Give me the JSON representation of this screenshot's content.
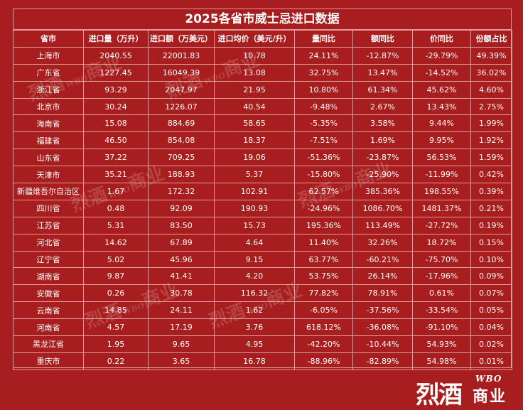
{
  "title": "2025各省市威士忌进口数据",
  "headers": [
    "省市",
    "进口量（万升）",
    "进口额（万美元）",
    "进口均价（美元/升）",
    "量同比",
    "额同比",
    "价同比",
    "份额占比"
  ],
  "rows": [
    [
      "上海市",
      "2040.55",
      "22001.83",
      "10.78",
      "24.11%",
      "-12.87%",
      "-29.79%",
      "49.39%"
    ],
    [
      "广东省",
      "1227.45",
      "16049.39",
      "13.08",
      "32.75%",
      "13.47%",
      "-14.52%",
      "36.02%"
    ],
    [
      "浙江省",
      "93.29",
      "2047.97",
      "21.95",
      "10.80%",
      "61.34%",
      "45.62%",
      "4.60%"
    ],
    [
      "北京市",
      "30.24",
      "1226.07",
      "40.54",
      "-9.48%",
      "2.67%",
      "13.43%",
      "2.75%"
    ],
    [
      "海南省",
      "15.08",
      "884.69",
      "58.65",
      "-5.35%",
      "3.58%",
      "9.44%",
      "1.99%"
    ],
    [
      "福建省",
      "46.50",
      "854.08",
      "18.37",
      "-7.51%",
      "1.69%",
      "9.95%",
      "1.92%"
    ],
    [
      "山东省",
      "37.22",
      "709.25",
      "19.06",
      "-51.36%",
      "-23.87%",
      "56.53%",
      "1.59%"
    ],
    [
      "天津市",
      "35.21",
      "188.93",
      "5.37",
      "-15.80%",
      "-25.90%",
      "-11.99%",
      "0.42%"
    ],
    [
      "新疆维吾尔自治区",
      "1.67",
      "172.32",
      "102.91",
      "62.57%",
      "385.36%",
      "198.55%",
      "0.39%"
    ],
    [
      "四川省",
      "0.48",
      "92.09",
      "190.93",
      "-24.96%",
      "1086.70%",
      "1481.37%",
      "0.21%"
    ],
    [
      "江苏省",
      "5.31",
      "83.50",
      "15.73",
      "195.36%",
      "113.49%",
      "-27.72%",
      "0.19%"
    ],
    [
      "河北省",
      "14.62",
      "67.89",
      "4.64",
      "11.40%",
      "32.26%",
      "18.72%",
      "0.15%"
    ],
    [
      "辽宁省",
      "5.02",
      "45.96",
      "9.15",
      "63.77%",
      "-60.21%",
      "-75.70%",
      "0.10%"
    ],
    [
      "湖南省",
      "9.87",
      "41.41",
      "4.20",
      "53.75%",
      "26.14%",
      "-17.96%",
      "0.09%"
    ],
    [
      "安徽省",
      "0.26",
      "30.78",
      "116.32",
      "77.82%",
      "78.91%",
      "0.61%",
      "0.07%"
    ],
    [
      "云南省",
      "14.85",
      "24.11",
      "1.62",
      "-6.05%",
      "-37.56%",
      "-33.54%",
      "0.05%"
    ],
    [
      "河南省",
      "4.57",
      "17.19",
      "3.76",
      "618.12%",
      "-36.08%",
      "-91.10%",
      "0.04%"
    ],
    [
      "黑龙江省",
      "1.95",
      "9.65",
      "4.95",
      "-42.20%",
      "-10.44%",
      "54.93%",
      "0.02%"
    ],
    [
      "重庆市",
      "0.22",
      "3.65",
      "16.78",
      "-88.96%",
      "-82.89%",
      "54.98%",
      "0.01%"
    ]
  ],
  "watermark": {
    "main": "烈酒",
    "sub": "WBO",
    "tail": "商业"
  },
  "logo": {
    "main": "烈酒",
    "wbo": "WBO",
    "sub": "商业"
  },
  "colors": {
    "background": "#a81e1e",
    "grid": "#e29a9a",
    "text": "#ffffff"
  }
}
